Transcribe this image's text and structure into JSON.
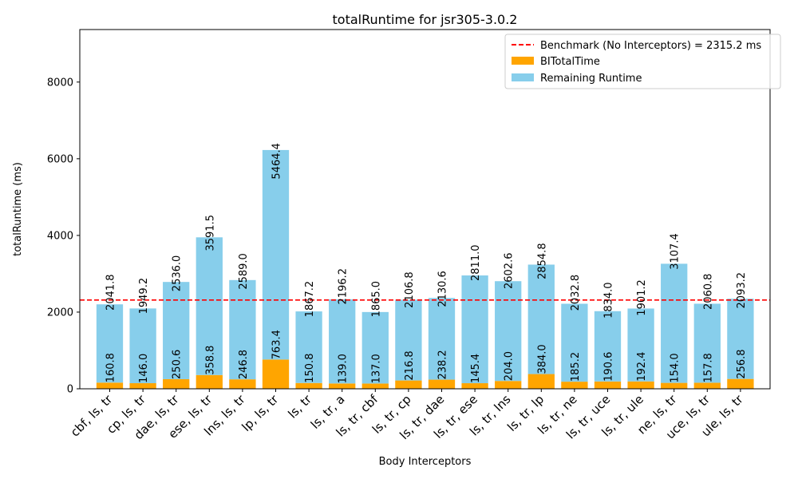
{
  "chart_data": {
    "type": "bar",
    "title": "totalRuntime for jsr305-3.0.2",
    "xlabel": "Body Interceptors",
    "ylabel": "totalRuntime (ms)",
    "ylim": [
      0,
      9370
    ],
    "yticks": [
      0,
      2000,
      4000,
      6000,
      8000
    ],
    "legend_position": "top-right",
    "grid": false,
    "categories": [
      "cbf, ls, tr",
      "cp, ls, tr",
      "dae, ls, tr",
      "ese, ls, tr",
      "lns, ls, tr",
      "lp, ls, tr",
      "ls, tr",
      "ls, tr, a",
      "ls, tr, cbf",
      "ls, tr, cp",
      "ls, tr, dae",
      "ls, tr, ese",
      "ls, tr, lns",
      "ls, tr, lp",
      "ls, tr, ne",
      "ls, tr, uce",
      "ls, tr, ule",
      "ne, ls, tr",
      "uce, ls, tr",
      "ule, ls, tr"
    ],
    "series": [
      {
        "name": "BITotalTime",
        "color": "#FFA500",
        "values": [
          160.8,
          146.0,
          250.6,
          358.8,
          246.8,
          763.4,
          150.8,
          139.0,
          137.0,
          216.8,
          238.2,
          145.4,
          204.0,
          384.0,
          185.2,
          190.6,
          192.4,
          154.0,
          157.8,
          256.8
        ],
        "labels": [
          "160.8",
          "146.0",
          "250.6",
          "358.8",
          "246.8",
          "763.4",
          "150.8",
          "139.0",
          "137.0",
          "216.8",
          "238.2",
          "145.4",
          "204.0",
          "384.0",
          "185.2",
          "190.6",
          "192.4",
          "154.0",
          "157.8",
          "256.8"
        ]
      },
      {
        "name": "Remaining Runtime",
        "color": "#87CEEB",
        "values": [
          2041.8,
          1949.2,
          2536.0,
          3591.5,
          2589.0,
          5464.4,
          1867.2,
          2196.2,
          1865.0,
          2106.8,
          2130.6,
          2811.0,
          2602.6,
          2854.8,
          2032.8,
          1834.0,
          1901.2,
          3107.4,
          2060.8,
          2093.2
        ],
        "labels": [
          "2041.8",
          "1949.2",
          "2536.0",
          "3591.5",
          "2589.0",
          "5464.4",
          "1867.2",
          "2196.2",
          "1865.0",
          "2106.8",
          "2130.6",
          "2811.0",
          "2602.6",
          "2854.8",
          "2032.8",
          "1834.0",
          "1901.2",
          "3107.4",
          "2060.8",
          "2093.2"
        ]
      }
    ],
    "benchmark": {
      "label": "Benchmark (No Interceptors) = 2315.2 ms",
      "value": 2315.2,
      "color": "#FF0000"
    }
  }
}
